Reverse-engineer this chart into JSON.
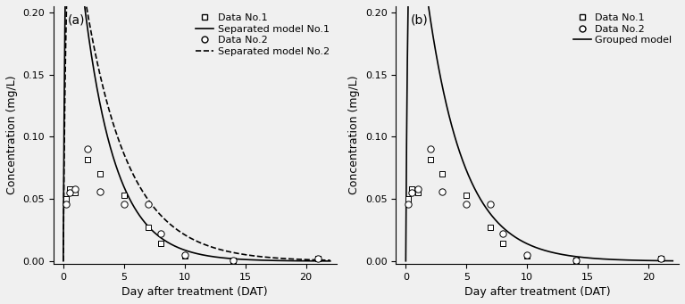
{
  "panel_a_label": "(a)",
  "panel_b_label": "(b)",
  "xlabel": "Day after treatment (DAT)",
  "ylabel": "Concentration (mg/L)",
  "ylim": [
    -0.002,
    0.205
  ],
  "xlim": [
    -0.8,
    22.5
  ],
  "yticks": [
    0.0,
    0.05,
    0.1,
    0.15,
    0.2
  ],
  "xticks": [
    0,
    5,
    10,
    15,
    20
  ],
  "data1_x": [
    0.2,
    0.5,
    1.0,
    2.0,
    3.0,
    5.0,
    7.0,
    8.0,
    10.0,
    14.0,
    21.0
  ],
  "data1_y": [
    0.05,
    0.058,
    0.055,
    0.082,
    0.07,
    0.053,
    0.027,
    0.014,
    0.004,
    0.001,
    0.002
  ],
  "data2_x": [
    0.2,
    0.5,
    1.0,
    2.0,
    3.0,
    5.0,
    7.0,
    8.0,
    10.0,
    14.0,
    21.0
  ],
  "data2_y": [
    0.046,
    0.055,
    0.058,
    0.09,
    0.056,
    0.046,
    0.046,
    0.022,
    0.005,
    0.001,
    0.002
  ],
  "model1_params": {
    "A": 0.4,
    "k1": 5.5,
    "k2": 0.38
  },
  "model2_params": {
    "A": 0.35,
    "k1": 4.0,
    "k2": 0.28
  },
  "model_grouped_params": {
    "A": 0.38,
    "k1": 4.8,
    "k2": 0.33
  },
  "legend_a_labels": [
    "Data No.1",
    "Separated model No.1",
    "Data No.2",
    "Separated model No.2"
  ],
  "legend_b_labels": [
    "Data No.1",
    "Data No.2",
    "Grouped model"
  ],
  "background_color": "#f0f0f0",
  "fontsize_label": 9,
  "fontsize_tick": 8,
  "fontsize_legend": 8,
  "fontsize_panel": 10
}
